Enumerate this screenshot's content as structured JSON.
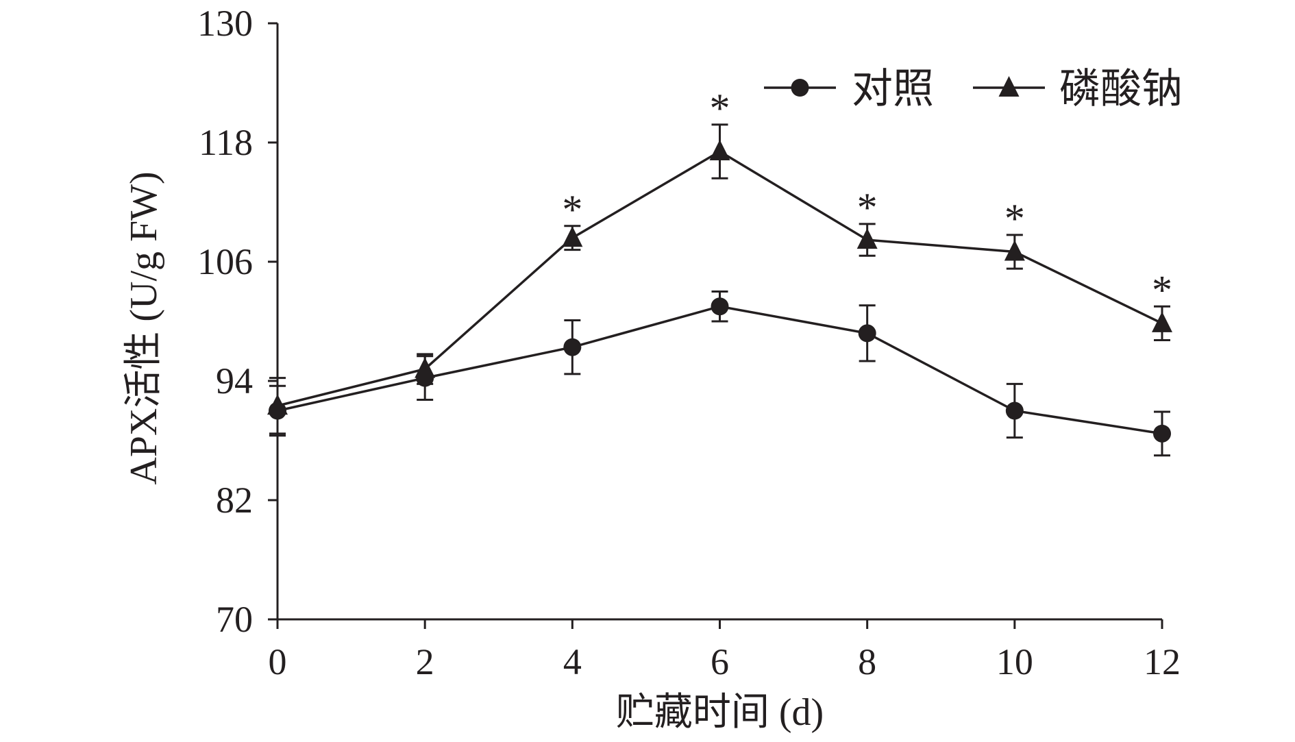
{
  "chart_data": {
    "type": "line",
    "x": [
      0,
      2,
      4,
      6,
      8,
      10,
      12
    ],
    "xlim": [
      0,
      12
    ],
    "ylim": [
      70,
      130
    ],
    "x_ticks": [
      "0",
      "2",
      "4",
      "6",
      "8",
      "10",
      "12"
    ],
    "y_ticks": [
      "70",
      "82",
      "94",
      "106",
      "118",
      "130"
    ],
    "xlabel": "贮藏时间 (d)",
    "ylabel": "APX活性 (U/g FW)",
    "legend_position": "top-right",
    "grid": false,
    "series": [
      {
        "name": "对照",
        "marker": "circle",
        "color": "#231f20",
        "values": [
          91.0,
          94.3,
          97.4,
          101.5,
          98.8,
          91.0,
          88.7
        ],
        "errors": [
          2.5,
          2.2,
          2.7,
          1.5,
          2.8,
          2.7,
          2.2
        ]
      },
      {
        "name": "磷酸钠",
        "marker": "triangle",
        "color": "#231f20",
        "values": [
          91.5,
          95.2,
          108.4,
          117.1,
          108.2,
          107.0,
          99.8
        ],
        "errors": [
          2.8,
          1.5,
          1.2,
          2.7,
          1.6,
          1.7,
          1.7
        ],
        "significance": [
          "",
          "",
          "*",
          "*",
          "*",
          "*",
          "*"
        ]
      }
    ]
  }
}
